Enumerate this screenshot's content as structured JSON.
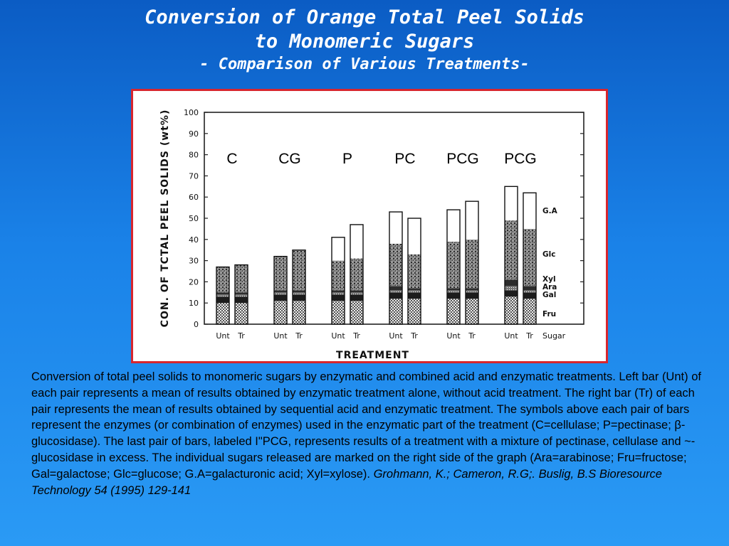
{
  "slide": {
    "title_line1": "Conversion of Orange Total Peel Solids",
    "title_line2": "to Monomeric Sugars",
    "subtitle": "- Comparison of Various Treatments-",
    "caption": "Conversion of total peel solids to monomeric sugars by enzymatic and combined acid and enzymatic treatments. Left bar (Unt) of each pair represents a mean of results obtained by enzymatic treatment alone, without acid treatment. The right bar (Tr) of each pair represents the mean of results obtained by sequential acid and enzymatic treatment. The symbols above each pair of bars represent the enzymes (or combination of enzymes) used in the enzymatic part of the treatment (C=cellulase; P=pectinase; β-glucosidase). The last pair of bars, labeled I\"PCG, represents results of a treatment with a mixture of pectinase, cellulase and ~-glucosidase in excess. The individual sugars released are marked on the right side of the graph (Ara=arabinose; Fru=fructose; Gal=galactose; Glc=glucose; G.A=galacturonic acid; Xyl=xylose).",
    "citation": "Grohmann, K.; Cameron, R.G;. Buslig, B.S Bioresource Technology 54 (1995) 129-141"
  },
  "chart_data": {
    "type": "bar",
    "stacked": true,
    "xlabel": "TREATMENT",
    "ylabel": "CON. OF TCTAL PEEL SOLIDS (wt%)",
    "ylim": [
      0,
      100
    ],
    "yticks": [
      "0",
      "10",
      "20",
      "30",
      "40",
      "50",
      "60",
      "70",
      "80",
      "90",
      "100"
    ],
    "groups": [
      "C",
      "CG",
      "P",
      "PC",
      "PCG",
      "PCG"
    ],
    "bar_labels": [
      "Unt",
      "Tr",
      "Unt",
      "Tr",
      "Unt",
      "Tr",
      "Unt",
      "Tr",
      "Unt",
      "Tr",
      "Unt",
      "Tr"
    ],
    "sugar_axis_label": "Sugar",
    "series": [
      {
        "name": "Fru",
        "values": [
          10,
          10,
          11,
          11,
          11,
          11,
          12,
          12,
          12,
          12,
          13,
          12
        ]
      },
      {
        "name": "Gal",
        "values": [
          3,
          3,
          3,
          3,
          3,
          3,
          3,
          3,
          3,
          3,
          3,
          3
        ]
      },
      {
        "name": "Ara",
        "values": [
          1,
          1,
          1,
          1,
          1,
          1,
          1,
          1,
          1,
          1,
          2,
          1
        ]
      },
      {
        "name": "Xyl",
        "values": [
          1,
          1,
          1,
          1,
          1,
          1,
          2,
          1,
          1,
          1,
          3,
          2
        ]
      },
      {
        "name": "Glc",
        "values": [
          12,
          13,
          16,
          19,
          14,
          15,
          20,
          16,
          22,
          23,
          28,
          27
        ]
      },
      {
        "name": "G.A",
        "values": [
          0,
          0,
          0,
          0,
          11,
          16,
          15,
          17,
          15,
          18,
          16,
          17
        ]
      }
    ],
    "totals": [
      27,
      28,
      32,
      35,
      41,
      47,
      53,
      50,
      54,
      58,
      65,
      62
    ],
    "series_colors": {
      "Fru": "#d2d2d2",
      "Gal": "#1e1e1e",
      "Ara": "#5a5a5a",
      "Xyl": "#2c2c2c",
      "Glc": "#7a7a7a",
      "G.A": "#ffffff"
    }
  }
}
